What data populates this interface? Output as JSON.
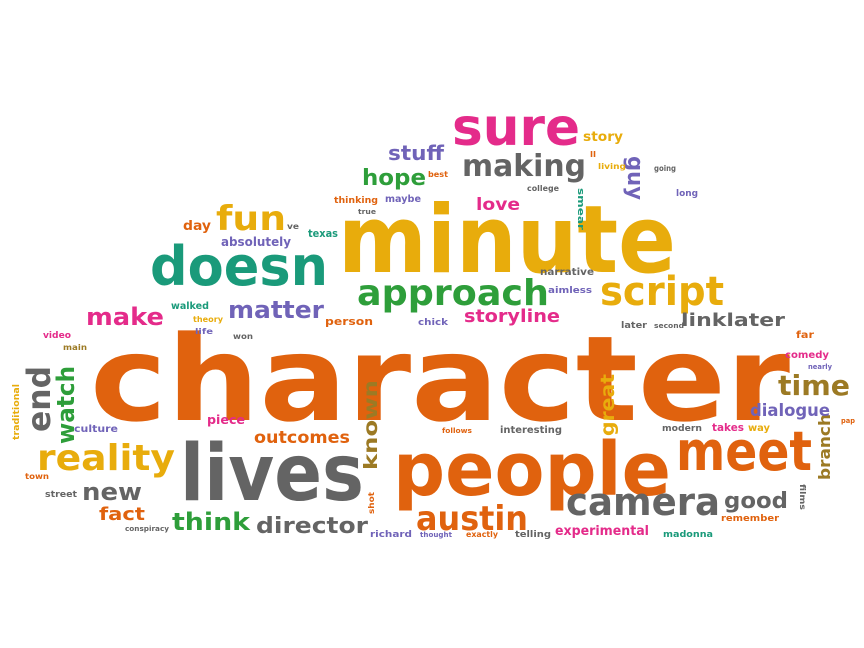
{
  "colors": {
    "orange": "#e0620e",
    "yellow": "#e8ac0c",
    "green": "#2e9e3a",
    "teal": "#1a9a7a",
    "magenta": "#e42b8a",
    "purple": "#7063b8",
    "gray": "#646464",
    "brown": "#9c7a24",
    "olive": "#8c9a1c"
  },
  "words": [
    {
      "text": "character",
      "color": "orange"
    },
    {
      "text": "minute",
      "color": "yellow"
    },
    {
      "text": "people",
      "color": "orange"
    },
    {
      "text": "lives",
      "color": "gray"
    },
    {
      "text": "meet",
      "color": "orange"
    },
    {
      "text": "sure",
      "color": "magenta"
    },
    {
      "text": "doesn",
      "color": "teal"
    },
    {
      "text": "approach",
      "color": "green"
    },
    {
      "text": "script",
      "color": "yellow"
    },
    {
      "text": "camera",
      "color": "gray"
    },
    {
      "text": "reality",
      "color": "yellow"
    },
    {
      "text": "austin",
      "color": "orange"
    },
    {
      "text": "making",
      "color": "gray"
    },
    {
      "text": "fun",
      "color": "yellow"
    },
    {
      "text": "end",
      "color": "gray"
    },
    {
      "text": "time",
      "color": "brown"
    },
    {
      "text": "watch",
      "color": "green"
    },
    {
      "text": "matter",
      "color": "purple"
    },
    {
      "text": "make",
      "color": "magenta"
    },
    {
      "text": "new",
      "color": "gray"
    },
    {
      "text": "think",
      "color": "green"
    },
    {
      "text": "director",
      "color": "gray"
    },
    {
      "text": "good",
      "color": "gray"
    },
    {
      "text": "hope",
      "color": "green"
    },
    {
      "text": "stuff",
      "color": "purple"
    },
    {
      "text": "linklater",
      "color": "gray"
    },
    {
      "text": "storyline",
      "color": "magenta"
    },
    {
      "text": "dialogue",
      "color": "purple"
    },
    {
      "text": "outcomes",
      "color": "orange"
    },
    {
      "text": "known",
      "color": "brown"
    },
    {
      "text": "love",
      "color": "magenta"
    },
    {
      "text": "great",
      "color": "yellow"
    },
    {
      "text": "fact",
      "color": "orange"
    },
    {
      "text": "guy",
      "color": "purple"
    },
    {
      "text": "story",
      "color": "yellow"
    },
    {
      "text": "branch",
      "color": "brown"
    },
    {
      "text": "experimental",
      "color": "magenta"
    },
    {
      "text": "day",
      "color": "orange"
    },
    {
      "text": "absolutely",
      "color": "purple"
    },
    {
      "text": "ve",
      "color": "gray"
    },
    {
      "text": "texas",
      "color": "teal"
    },
    {
      "text": "thinking",
      "color": "orange"
    },
    {
      "text": "maybe",
      "color": "purple"
    },
    {
      "text": "best",
      "color": "orange"
    },
    {
      "text": "true",
      "color": "gray"
    },
    {
      "text": "college",
      "color": "gray"
    },
    {
      "text": "living",
      "color": "yellow"
    },
    {
      "text": "smear",
      "color": "teal"
    },
    {
      "text": "going",
      "color": "gray"
    },
    {
      "text": "long",
      "color": "purple"
    },
    {
      "text": "ll",
      "color": "orange"
    },
    {
      "text": "narrative",
      "color": "gray"
    },
    {
      "text": "aimless",
      "color": "purple"
    },
    {
      "text": "walked",
      "color": "teal"
    },
    {
      "text": "theory",
      "color": "yellow"
    },
    {
      "text": "life",
      "color": "purple"
    },
    {
      "text": "person",
      "color": "orange"
    },
    {
      "text": "chick",
      "color": "purple"
    },
    {
      "text": "won",
      "color": "gray"
    },
    {
      "text": "video",
      "color": "magenta"
    },
    {
      "text": "main",
      "color": "brown"
    },
    {
      "text": "later",
      "color": "gray"
    },
    {
      "text": "second",
      "color": "gray"
    },
    {
      "text": "far",
      "color": "orange"
    },
    {
      "text": "comedy",
      "color": "magenta"
    },
    {
      "text": "nearly",
      "color": "purple"
    },
    {
      "text": "traditional",
      "color": "yellow"
    },
    {
      "text": "culture",
      "color": "purple"
    },
    {
      "text": "piece",
      "color": "magenta"
    },
    {
      "text": "follows",
      "color": "orange"
    },
    {
      "text": "interesting",
      "color": "gray"
    },
    {
      "text": "modern",
      "color": "gray"
    },
    {
      "text": "takes",
      "color": "magenta"
    },
    {
      "text": "way",
      "color": "yellow"
    },
    {
      "text": "pap",
      "color": "orange"
    },
    {
      "text": "town",
      "color": "orange"
    },
    {
      "text": "street",
      "color": "gray"
    },
    {
      "text": "conspiracy",
      "color": "gray"
    },
    {
      "text": "shot",
      "color": "orange"
    },
    {
      "text": "richard",
      "color": "purple"
    },
    {
      "text": "thought",
      "color": "purple"
    },
    {
      "text": "exactly",
      "color": "orange"
    },
    {
      "text": "telling",
      "color": "gray"
    },
    {
      "text": "madonna",
      "color": "teal"
    },
    {
      "text": "remember",
      "color": "orange"
    },
    {
      "text": "films",
      "color": "gray"
    }
  ]
}
